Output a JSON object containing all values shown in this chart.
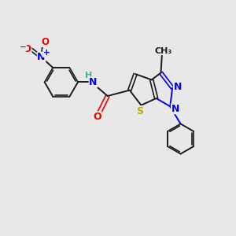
{
  "bg_color": "#e8e8e8",
  "bond_color": "#1a1a1a",
  "N_color": "#0000ee",
  "O_color": "#ee0000",
  "S_color": "#bbaa00",
  "H_color": "#44aaaa",
  "figsize": [
    3.0,
    3.0
  ],
  "dpi": 100,
  "xlim": [
    0,
    10
  ],
  "ylim": [
    0,
    10
  ]
}
